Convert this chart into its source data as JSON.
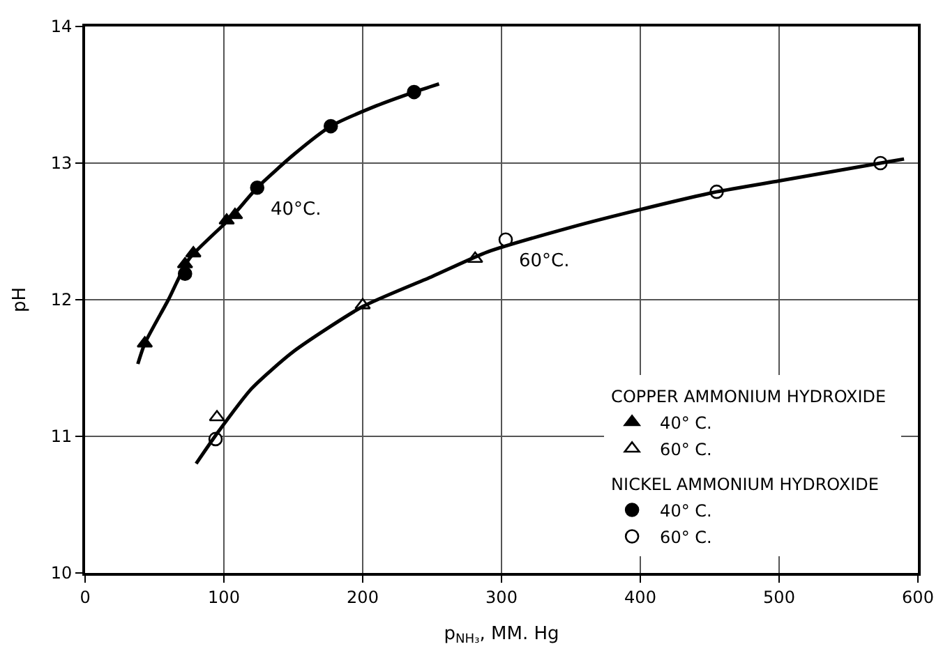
{
  "chart_data": {
    "type": "scatter",
    "xlabel": "p$_{NH₃}$, MM. Hg",
    "ylabel": "pH",
    "xlim": [
      0,
      600
    ],
    "ylim": [
      10,
      14
    ],
    "xticks": [
      0,
      100,
      200,
      300,
      400,
      500,
      600
    ],
    "yticks": [
      10,
      11,
      12,
      13,
      14
    ],
    "grid": true,
    "legend": "bottom right",
    "annotations": [
      "COPPER AMMONIUM HYDROXIDE",
      "NICKEL AMMONIUM HYDROXIDE",
      {
        "text": "40°C.",
        "x": 124,
        "y": 12.82
      },
      {
        "text": "60°C.",
        "x": 303,
        "y": 12.44
      }
    ],
    "series": [
      {
        "name": "40° C.",
        "color": "#000000",
        "marker": "triangle",
        "x": [
          43,
          72,
          78,
          102,
          108
        ],
        "values": [
          11.68,
          12.26,
          12.34,
          12.58,
          12.62
        ]
      },
      {
        "name": "60° C.",
        "color": "#ffffff",
        "marker": "triangle",
        "x": [
          95,
          200,
          281
        ],
        "values": [
          11.14,
          11.96,
          12.3
        ]
      },
      {
        "name": "40° C.",
        "color": "#000000",
        "marker": "circle",
        "x": [
          72,
          124,
          177,
          237
        ],
        "values": [
          12.19,
          12.82,
          13.27,
          13.52
        ]
      },
      {
        "name": "60° C.",
        "color": "#ffffff",
        "marker": "circle",
        "x": [
          94,
          303,
          455,
          573
        ],
        "values": [
          10.98,
          12.44,
          12.79,
          13.0
        ]
      },
      {
        "type": "line",
        "color": "#000000",
        "marker": "none",
        "x": [
          38,
          43,
          60,
          75,
          105,
          124,
          150,
          177,
          210,
          237,
          255
        ],
        "values": [
          11.53,
          11.68,
          12.0,
          12.3,
          12.6,
          12.82,
          13.06,
          13.27,
          13.42,
          13.52,
          13.58
        ]
      },
      {
        "type": "line",
        "color": "#000000",
        "marker": "none",
        "x": [
          80,
          95,
          120,
          150,
          200,
          250,
          290,
          350,
          400,
          455,
          500,
          573,
          590
        ],
        "values": [
          10.8,
          11.02,
          11.35,
          11.62,
          11.95,
          12.17,
          12.35,
          12.53,
          12.66,
          12.79,
          12.87,
          13.0,
          13.03
        ]
      }
    ]
  }
}
